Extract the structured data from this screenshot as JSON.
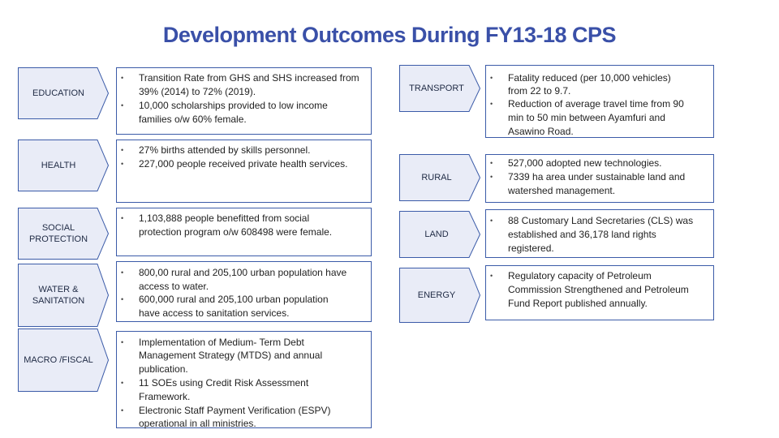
{
  "title": "Development Outcomes During FY13-18 CPS",
  "colors": {
    "accent": "#3b5ba8",
    "chevron_fill": "#e9ecf7",
    "title": "#3a50a8"
  },
  "left": [
    {
      "category": "EDUCATION",
      "bullets": [
        [
          "Transition Rate from GHS and SHS increased from",
          "39% (2014) to 72% (2019)."
        ],
        [
          "10,000 scholarships provided to low income",
          "families o/w 60% female."
        ]
      ]
    },
    {
      "category": "HEALTH",
      "bullets": [
        [
          " 27% births attended by skills personnel."
        ],
        [
          "227,000 people received private health services."
        ]
      ]
    },
    {
      "category": "SOCIAL PROTECTION",
      "bullets": [
        [
          "1,103,888 people benefitted from social",
          "protection program o/w 608498 were female."
        ]
      ]
    },
    {
      "category": "WATER & SANITATION",
      "bullets": [
        [
          " 800,00 rural and 205,100 urban population have",
          "access to water."
        ],
        [
          "600,000 rural and  205,100 urban population",
          "have access to sanitation services."
        ]
      ]
    },
    {
      "category": "MACRO /FISCAL",
      "bullets": [
        [
          "Implementation of Medium- Term Debt",
          "Management Strategy (MTDS) and annual",
          "publication."
        ],
        [
          "11 SOEs using Credit Risk  Assessment",
          "Framework."
        ],
        [
          "Electronic Staff Payment Verification (ESPV)",
          "operational in all ministries."
        ]
      ]
    }
  ],
  "right": [
    {
      "category": "TRANSPORT",
      "bullets": [
        [
          "Fatality reduced (per 10,000 vehicles)",
          "from 22 to 9.7."
        ],
        [
          " Reduction of average travel time from 90",
          "min to 50 min between Ayamfuri and",
          "Asawino Road."
        ]
      ]
    },
    {
      "category": "RURAL",
      "bullets": [
        [
          "527,000 adopted new technologies."
        ],
        [
          "7339 ha area under sustainable land and",
          "watershed management."
        ]
      ]
    },
    {
      "category": "LAND",
      "bullets": [
        [
          "88 Customary Land Secretaries (CLS) was",
          "established and  36,178 land rights",
          "registered."
        ]
      ]
    },
    {
      "category": "ENERGY",
      "bullets": [
        [
          "Regulatory capacity of Petroleum",
          "Commission Strengthened and Petroleum",
          "Fund Report published annually."
        ]
      ]
    }
  ]
}
